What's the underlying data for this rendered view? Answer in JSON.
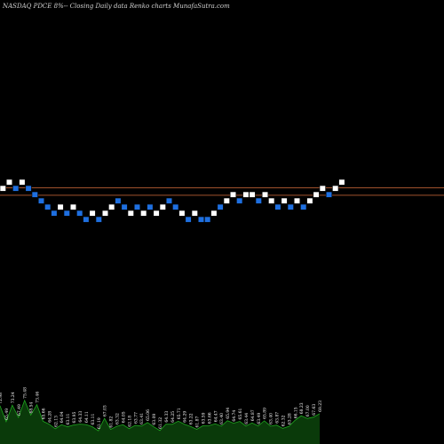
{
  "header": {
    "title": "NASDAQ PDCE 8%-- Closing Daily data Renko charts MunafaSutra.com"
  },
  "colors": {
    "background": "#000000",
    "up_brick": "#ffffff",
    "down_brick": "#1e6fe0",
    "brick_border": "#000000",
    "reference_line": "#a0522d",
    "volume_fill": "#0a3a0a",
    "volume_line": "#1fa51f",
    "volume_label": "#ffffff"
  },
  "chart_data": {
    "type": "renko",
    "brick_direction": [
      "up",
      "up",
      "down",
      "up",
      "down",
      "down",
      "down",
      "down",
      "down",
      "up",
      "down",
      "up",
      "down",
      "down",
      "up",
      "down",
      "up",
      "up",
      "down",
      "down",
      "up",
      "down",
      "up",
      "down",
      "up",
      "up",
      "down",
      "down",
      "up",
      "down",
      "up",
      "down",
      "down",
      "up",
      "down",
      "up",
      "up",
      "down",
      "up",
      "up",
      "down",
      "up",
      "up",
      "down",
      "up",
      "down",
      "up",
      "down",
      "up",
      "up",
      "up",
      "down",
      "up",
      "up"
    ],
    "brick_level": [
      8,
      9,
      8,
      9,
      8,
      7,
      6,
      5,
      4,
      5,
      4,
      5,
      4,
      3,
      4,
      3,
      4,
      5,
      6,
      5,
      4,
      5,
      4,
      5,
      4,
      5,
      6,
      5,
      4,
      3,
      4,
      3,
      3,
      4,
      5,
      6,
      7,
      6,
      7,
      7,
      6,
      7,
      6,
      5,
      6,
      5,
      6,
      5,
      6,
      7,
      8,
      7,
      8,
      9
    ],
    "reference_lines": [
      8.0,
      6.8
    ],
    "volume_values": [
      72.98,
      65.49,
      73.24,
      67.49,
      75.48,
      68.54,
      73.46,
      65.66,
      64.28,
      62.13,
      64.04,
      63.11,
      63.95,
      64.33,
      64.11,
      63.11,
      61.19,
      67.03,
      61.82,
      63.32,
      64.05,
      62.18,
      63.77,
      63.41,
      65.06,
      63.09,
      61.32,
      64.33,
      64.25,
      65.71,
      64.29,
      63.22,
      61.87,
      63.59,
      63.66,
      64.47,
      63.4,
      65.94,
      64.74,
      65.61,
      63.44,
      64.87,
      63.49,
      65.89,
      63.4,
      63.87,
      62.32,
      63.28,
      66.15,
      68.23,
      67.0,
      67.63,
      69.23
    ],
    "volume_labels": [
      "72.98",
      "65.49",
      "73.24",
      "67.49",
      "75.48",
      "68.54",
      "73.46",
      "65.66",
      "64.28",
      "62.13",
      "64.04",
      "63.11",
      "63.95",
      "64.33",
      "64.11",
      "63.11",
      "61.19",
      "67.03",
      "61.82",
      "63.32",
      "64.05",
      "62.18",
      "63.77",
      "63.41",
      "65.06",
      "63.09",
      "61.32",
      "64.33",
      "64.25",
      "65.71",
      "64.29",
      "63.22",
      "61.87",
      "63.59",
      "63.66",
      "64.47",
      "63.40",
      "65.94",
      "64.74",
      "65.61",
      "63.44",
      "64.87",
      "63.49",
      "65.89",
      "63.40",
      "63.87",
      "62.32",
      "63.28",
      "66.15",
      "68.23",
      "67.00",
      "67.63",
      "69.23"
    ],
    "grid": false
  }
}
